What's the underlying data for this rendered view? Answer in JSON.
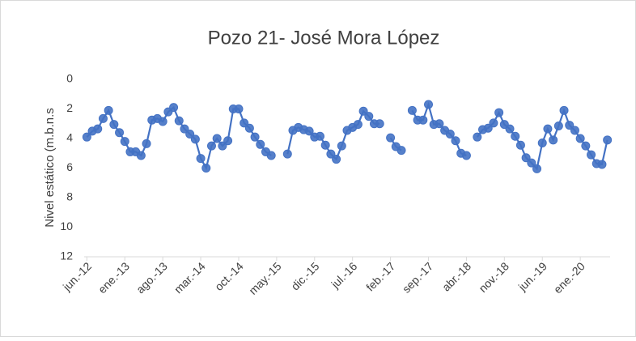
{
  "chart_data": {
    "type": "line",
    "title": "Pozo 21- José Mora López",
    "y_label": "Nivel estático (m.b.n.s",
    "categories": [
      "jun.-12",
      null,
      null,
      null,
      null,
      null,
      null,
      "ene.-13",
      null,
      null,
      null,
      null,
      null,
      null,
      "ago.-13",
      null,
      null,
      null,
      null,
      null,
      null,
      "mar.-14",
      null,
      null,
      null,
      null,
      null,
      null,
      "oct.-14",
      null,
      null,
      null,
      null,
      null,
      null,
      "may.-15",
      null,
      null,
      null,
      null,
      null,
      null,
      "dic.-15",
      null,
      null,
      null,
      null,
      null,
      null,
      "jul.-16",
      null,
      null,
      null,
      null,
      null,
      null,
      "feb.-17",
      null,
      null,
      null,
      null,
      null,
      null,
      "sep.-17",
      null,
      null,
      null,
      null,
      null,
      null,
      "abr.-18",
      null,
      null,
      null,
      null,
      null,
      null,
      "nov.-18",
      null,
      null,
      null,
      null,
      null,
      null,
      "jun.-19",
      null,
      null,
      null,
      null,
      null,
      null,
      "ene.-20",
      null,
      null,
      null,
      null,
      null
    ],
    "series": [
      {
        "name": "Nivel estático",
        "color": "#4472c4",
        "values": [
          3.9,
          3.5,
          3.35,
          2.65,
          2.1,
          3.05,
          3.6,
          4.2,
          4.9,
          4.9,
          5.15,
          4.35,
          2.75,
          2.65,
          2.85,
          2.2,
          1.9,
          2.8,
          3.35,
          3.7,
          4.05,
          5.35,
          6.0,
          4.5,
          4.0,
          4.5,
          4.15,
          2.0,
          2.0,
          2.95,
          3.3,
          3.9,
          4.4,
          4.9,
          5.15,
          null,
          null,
          5.05,
          3.45,
          3.25,
          3.4,
          3.5,
          3.9,
          3.85,
          4.45,
          5.05,
          5.4,
          4.5,
          3.45,
          3.25,
          3.05,
          2.15,
          2.5,
          3.0,
          3.0,
          null,
          3.95,
          4.55,
          4.8,
          null,
          2.1,
          2.75,
          2.75,
          1.7,
          3.05,
          3.0,
          3.45,
          3.7,
          4.15,
          5.0,
          5.15,
          null,
          3.9,
          3.4,
          3.3,
          2.95,
          2.25,
          3.05,
          3.35,
          3.85,
          4.45,
          5.3,
          5.65,
          6.05,
          4.3,
          3.35,
          4.1,
          3.15,
          2.1,
          3.1,
          3.45,
          4.0,
          4.5,
          5.1,
          5.7,
          5.75,
          4.1
        ]
      }
    ],
    "ylim": [
      0,
      12
    ],
    "yticks": [
      0,
      2,
      4,
      6,
      8,
      10,
      12
    ],
    "y_inverted": true,
    "grid": false
  }
}
